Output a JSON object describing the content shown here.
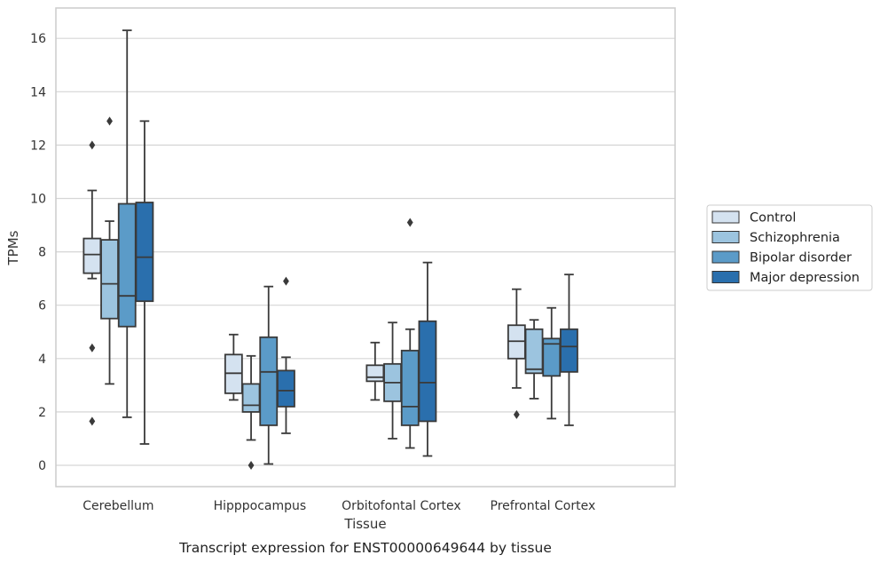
{
  "chart_data": {
    "type": "box",
    "caption": "Transcript expression for ENST00000649644 by tissue",
    "xlabel": "Tissue",
    "ylabel": "TPMs",
    "ylim": [
      -0.8,
      17.2
    ],
    "yticks": [
      0,
      2,
      4,
      6,
      8,
      10,
      12,
      14,
      16
    ],
    "grid": "horizontal",
    "legend_position": "right",
    "categories": [
      "Cerebellum",
      "Hipppocampus",
      "Orbitofontal Cortex",
      "Prefrontal Cortex"
    ],
    "series": [
      {
        "name": "Control",
        "color": "#d4e2f0",
        "boxes": [
          {
            "whisker_low": 7.0,
            "q1": 7.2,
            "median": 7.9,
            "q3": 8.5,
            "whisker_high": 10.3,
            "outliers": [
              12.0,
              4.4,
              1.65
            ]
          },
          {
            "whisker_low": 2.45,
            "q1": 2.7,
            "median": 3.45,
            "q3": 4.15,
            "whisker_high": 4.9,
            "outliers": []
          },
          {
            "whisker_low": 2.45,
            "q1": 3.15,
            "median": 3.3,
            "q3": 3.75,
            "whisker_high": 4.6,
            "outliers": []
          },
          {
            "whisker_low": 2.9,
            "q1": 4.0,
            "median": 4.65,
            "q3": 5.25,
            "whisker_high": 6.6,
            "outliers": [
              1.9
            ]
          }
        ]
      },
      {
        "name": "Schizophrenia",
        "color": "#9cc4df",
        "boxes": [
          {
            "whisker_low": 3.05,
            "q1": 5.5,
            "median": 6.8,
            "q3": 8.45,
            "whisker_high": 9.15,
            "outliers": [
              12.9
            ]
          },
          {
            "whisker_low": 0.95,
            "q1": 2.0,
            "median": 2.25,
            "q3": 3.05,
            "whisker_high": 4.1,
            "outliers": [
              0.0
            ]
          },
          {
            "whisker_low": 1.0,
            "q1": 2.4,
            "median": 3.1,
            "q3": 3.8,
            "whisker_high": 5.35,
            "outliers": []
          },
          {
            "whisker_low": 2.5,
            "q1": 3.45,
            "median": 3.6,
            "q3": 5.1,
            "whisker_high": 5.45,
            "outliers": []
          }
        ]
      },
      {
        "name": "Bipolar disorder",
        "color": "#5b9bc8",
        "boxes": [
          {
            "whisker_low": 1.8,
            "q1": 5.2,
            "median": 6.35,
            "q3": 9.8,
            "whisker_high": 16.3,
            "outliers": []
          },
          {
            "whisker_low": 0.05,
            "q1": 1.5,
            "median": 3.5,
            "q3": 4.8,
            "whisker_high": 6.7,
            "outliers": []
          },
          {
            "whisker_low": 0.65,
            "q1": 1.5,
            "median": 2.2,
            "q3": 4.3,
            "whisker_high": 5.1,
            "outliers": [
              9.1
            ]
          },
          {
            "whisker_low": 1.75,
            "q1": 3.35,
            "median": 4.55,
            "q3": 4.75,
            "whisker_high": 5.9,
            "outliers": []
          }
        ]
      },
      {
        "name": "Major depression",
        "color": "#2a6fad",
        "boxes": [
          {
            "whisker_low": 0.8,
            "q1": 6.15,
            "median": 7.8,
            "q3": 9.85,
            "whisker_high": 12.9,
            "outliers": []
          },
          {
            "whisker_low": 1.2,
            "q1": 2.2,
            "median": 2.8,
            "q3": 3.55,
            "whisker_high": 4.05,
            "outliers": [
              6.9
            ]
          },
          {
            "whisker_low": 0.35,
            "q1": 1.65,
            "median": 3.1,
            "q3": 5.4,
            "whisker_high": 7.6,
            "outliers": []
          },
          {
            "whisker_low": 1.5,
            "q1": 3.5,
            "median": 4.45,
            "q3": 5.1,
            "whisker_high": 7.15,
            "outliers": []
          }
        ]
      }
    ]
  }
}
